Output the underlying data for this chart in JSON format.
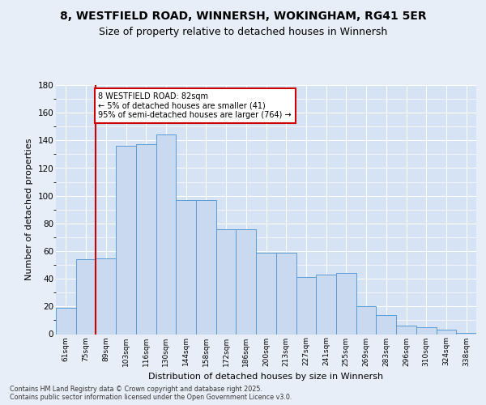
{
  "title1": "8, WESTFIELD ROAD, WINNERSH, WOKINGHAM, RG41 5ER",
  "title2": "Size of property relative to detached houses in Winnersh",
  "xlabel": "Distribution of detached houses by size in Winnersh",
  "ylabel": "Number of detached properties",
  "categories": [
    "61sqm",
    "75sqm",
    "89sqm",
    "103sqm",
    "116sqm",
    "130sqm",
    "144sqm",
    "158sqm",
    "172sqm",
    "186sqm",
    "200sqm",
    "213sqm",
    "227sqm",
    "241sqm",
    "255sqm",
    "269sqm",
    "283sqm",
    "296sqm",
    "310sqm",
    "324sqm",
    "338sqm"
  ],
  "bar_heights": [
    19,
    54,
    55,
    136,
    137,
    144,
    97,
    97,
    76,
    76,
    59,
    59,
    41,
    43,
    44,
    20,
    14,
    6,
    5,
    3,
    1
  ],
  "bar_color": "#c9d9f0",
  "bar_edge_color": "#5b9bd5",
  "vline_pos": 1.47,
  "vline_color": "#cc0000",
  "annotation_text": "8 WESTFIELD ROAD: 82sqm\n← 5% of detached houses are smaller (41)\n95% of semi-detached houses are larger (764) →",
  "annotation_box_color": "#ffffff",
  "annotation_box_edge": "#cc0000",
  "ylim": [
    0,
    180
  ],
  "yticks": [
    0,
    20,
    40,
    60,
    80,
    100,
    120,
    140,
    160,
    180
  ],
  "bg_color": "#e8eef7",
  "plot_bg": "#d5e3f5",
  "footer": "Contains HM Land Registry data © Crown copyright and database right 2025.\nContains public sector information licensed under the Open Government Licence v3.0.",
  "title1_fontsize": 10,
  "title2_fontsize": 9,
  "xlabel_fontsize": 8,
  "ylabel_fontsize": 8
}
